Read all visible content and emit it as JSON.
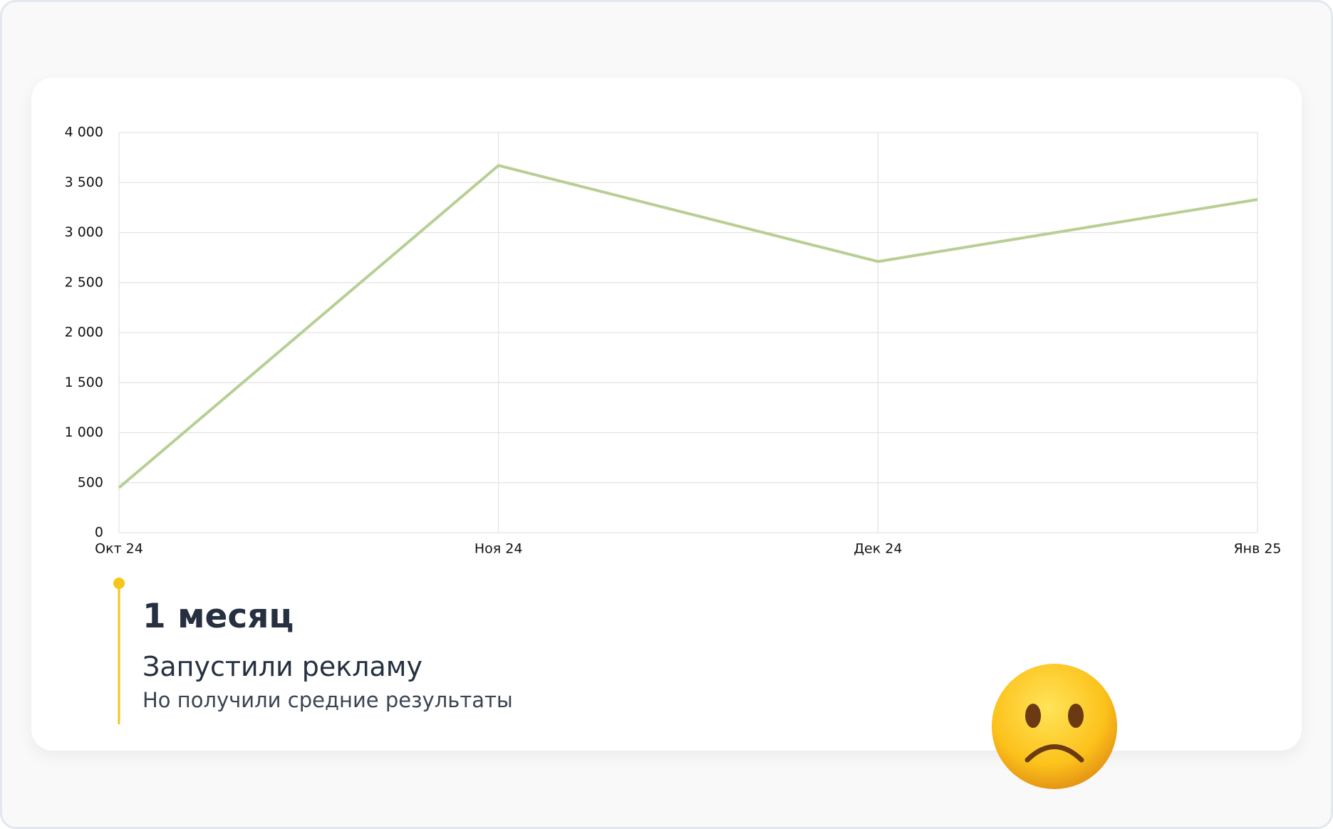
{
  "chart_data": {
    "type": "line",
    "categories": [
      "Окт 24",
      "Ноя 24",
      "Дек 24",
      "Янв 25"
    ],
    "values": [
      450,
      3670,
      2710,
      3330
    ],
    "color": "#b7cf94",
    "ylim": [
      0,
      4000
    ],
    "yticks": [
      0,
      500,
      {
        "value": 1000,
        "label": "1 000"
      },
      {
        "value": 1500,
        "label": "1 500"
      },
      {
        "value": 2000,
        "label": "2 000"
      },
      {
        "value": 2500,
        "label": "2 500"
      },
      {
        "value": 3000,
        "label": "3 000"
      },
      {
        "value": 3500,
        "label": "3 500"
      },
      {
        "value": 4000,
        "label": "4 000"
      }
    ],
    "grid": true
  },
  "note": {
    "heading": "1 месяц",
    "title": "Запустили рекламу",
    "subtitle": "Но получили средние результаты"
  }
}
